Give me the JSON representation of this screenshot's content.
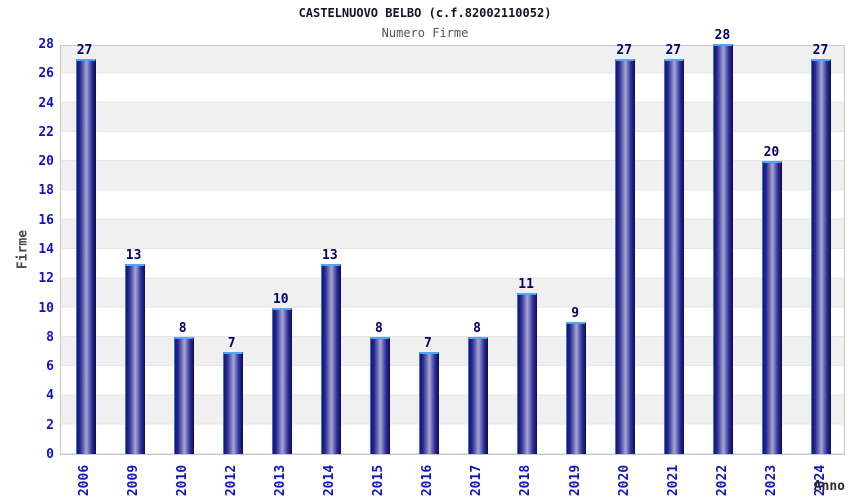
{
  "chart_data": {
    "type": "bar",
    "title": "CASTELNUOVO BELBO (c.f.82002110052)",
    "subtitle": "Numero Firme",
    "xlabel": "Anno",
    "ylabel": "Firme",
    "categories": [
      "2006",
      "2009",
      "2010",
      "2012",
      "2013",
      "2014",
      "2015",
      "2016",
      "2017",
      "2018",
      "2019",
      "2020",
      "2021",
      "2022",
      "2023",
      "2024"
    ],
    "values": [
      27,
      13,
      8,
      7,
      10,
      13,
      8,
      7,
      8,
      11,
      9,
      27,
      27,
      28,
      20,
      27
    ],
    "ylim": [
      0,
      28
    ],
    "ytick_step": 2,
    "grid": "horizontal-bands",
    "legend": "none",
    "colors": {
      "bar_edge": "#15156e",
      "bar_center": "#a8a8d4",
      "bar_cap": "#4da6ff",
      "tick_label": "#1212c4",
      "value_label": "#000066",
      "band_gray": "#f0f0f0",
      "plot_border": "#c8c8c8",
      "axis_title_gray": "#4a4a4a"
    }
  }
}
